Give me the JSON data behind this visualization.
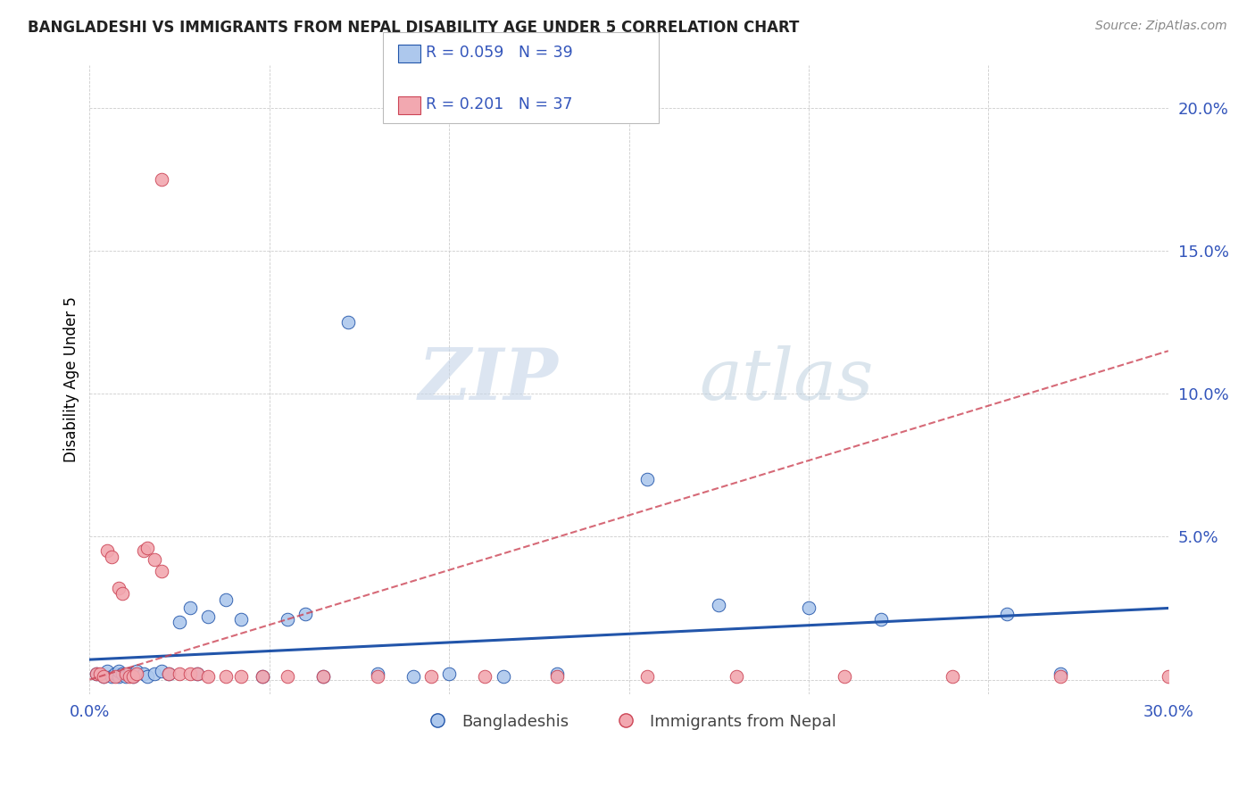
{
  "title": "BANGLADESHI VS IMMIGRANTS FROM NEPAL DISABILITY AGE UNDER 5 CORRELATION CHART",
  "source": "Source: ZipAtlas.com",
  "ylabel": "Disability Age Under 5",
  "xlim": [
    0.0,
    0.3
  ],
  "ylim": [
    -0.005,
    0.215
  ],
  "yticks": [
    0.0,
    0.05,
    0.1,
    0.15,
    0.2
  ],
  "ytick_labels": [
    "",
    "5.0%",
    "10.0%",
    "15.0%",
    "20.0%"
  ],
  "xticks": [
    0.0,
    0.05,
    0.1,
    0.15,
    0.2,
    0.25,
    0.3
  ],
  "xtick_labels": [
    "0.0%",
    "",
    "",
    "",
    "",
    "",
    "30.0%"
  ],
  "blue_R": 0.059,
  "blue_N": 39,
  "pink_R": 0.201,
  "pink_N": 37,
  "blue_color": "#adc8ed",
  "pink_color": "#f2a8b0",
  "trend_blue_color": "#2255aa",
  "trend_pink_color": "#cc4455",
  "background_color": "#ffffff",
  "grid_color": "#cccccc",
  "axis_label_color": "#3355bb",
  "title_color": "#222222",
  "watermark_zip": "ZIP",
  "watermark_atlas": "atlas",
  "blue_x": [
    0.002,
    0.004,
    0.005,
    0.006,
    0.007,
    0.008,
    0.008,
    0.009,
    0.01,
    0.011,
    0.012,
    0.013,
    0.015,
    0.016,
    0.018,
    0.02,
    0.022,
    0.025,
    0.028,
    0.03,
    0.033,
    0.038,
    0.042,
    0.048,
    0.055,
    0.06,
    0.065,
    0.072,
    0.08,
    0.09,
    0.1,
    0.115,
    0.13,
    0.155,
    0.175,
    0.2,
    0.22,
    0.255,
    0.27
  ],
  "blue_y": [
    0.002,
    0.001,
    0.003,
    0.001,
    0.002,
    0.001,
    0.003,
    0.002,
    0.001,
    0.002,
    0.001,
    0.003,
    0.002,
    0.001,
    0.002,
    0.003,
    0.002,
    0.02,
    0.025,
    0.002,
    0.022,
    0.028,
    0.021,
    0.001,
    0.021,
    0.023,
    0.001,
    0.125,
    0.002,
    0.001,
    0.002,
    0.001,
    0.002,
    0.07,
    0.026,
    0.025,
    0.021,
    0.023,
    0.002
  ],
  "pink_x": [
    0.002,
    0.003,
    0.004,
    0.005,
    0.006,
    0.007,
    0.008,
    0.009,
    0.01,
    0.011,
    0.012,
    0.013,
    0.015,
    0.016,
    0.018,
    0.02,
    0.022,
    0.025,
    0.028,
    0.03,
    0.033,
    0.038,
    0.042,
    0.048,
    0.055,
    0.065,
    0.08,
    0.095,
    0.11,
    0.13,
    0.155,
    0.18,
    0.21,
    0.24,
    0.27,
    0.3,
    0.02
  ],
  "pink_y": [
    0.002,
    0.002,
    0.001,
    0.045,
    0.043,
    0.001,
    0.032,
    0.03,
    0.002,
    0.001,
    0.001,
    0.002,
    0.045,
    0.046,
    0.042,
    0.038,
    0.002,
    0.002,
    0.002,
    0.002,
    0.001,
    0.001,
    0.001,
    0.001,
    0.001,
    0.001,
    0.001,
    0.001,
    0.001,
    0.001,
    0.001,
    0.001,
    0.001,
    0.001,
    0.001,
    0.001,
    0.175
  ],
  "blue_trend_x": [
    0.0,
    0.3
  ],
  "blue_trend_y": [
    0.007,
    0.025
  ],
  "pink_trend_x": [
    0.0,
    0.3
  ],
  "pink_trend_y": [
    0.0,
    0.115
  ]
}
